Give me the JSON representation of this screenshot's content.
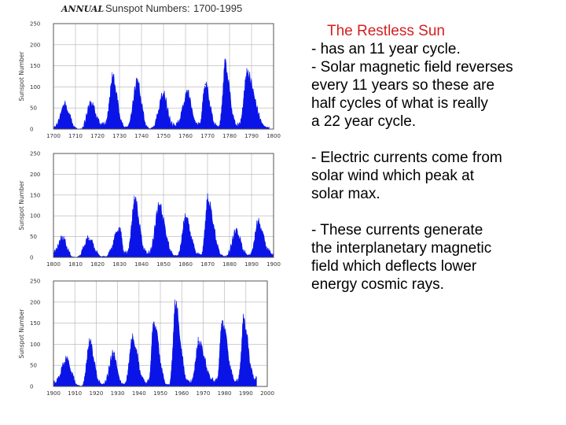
{
  "header": {
    "annual_tag": "ANNUAL",
    "title": "Sunspot Numbers:",
    "range": "1700-1995"
  },
  "text_panel": {
    "title": "The Restless Sun",
    "paragraphs": [
      [
        "- has an 11 year cycle.",
        "- Solar magnetic field reverses",
        "every 11 years so these are",
        "half cycles of what is really",
        "a 22 year cycle."
      ],
      [
        "- Electric currents come from",
        "solar wind which peak at",
        "solar max."
      ],
      [
        "- These currents generate",
        "the interplanetary magnetic",
        "field which deflects lower",
        "energy cosmic rays."
      ]
    ]
  },
  "colors": {
    "fill": "#0a14e6",
    "frame": "#555555",
    "grid": "#b0b0b0",
    "title_accent": "#d42020"
  },
  "chart_data": [
    {
      "type": "area",
      "xlabel": "",
      "ylabel": "Sunspot Number",
      "xlim": [
        1700,
        1800
      ],
      "ylim": [
        0,
        250
      ],
      "xticks": [
        "1700",
        "1710",
        "1720",
        "1730",
        "1740",
        "1750",
        "1760",
        "1770",
        "1780",
        "1790",
        "1800"
      ],
      "yticks": [
        "0",
        "50",
        "100",
        "150",
        "200",
        "250"
      ],
      "grid": true,
      "peaks": [
        [
          1705,
          58
        ],
        [
          1717,
          63
        ],
        [
          1727,
          122
        ],
        [
          1738,
          111
        ],
        [
          1750,
          83
        ],
        [
          1761,
          86
        ],
        [
          1769,
          106
        ],
        [
          1778,
          154
        ],
        [
          1788,
          132
        ]
      ],
      "minima": [
        [
          1700,
          5
        ],
        [
          1712,
          0
        ],
        [
          1723,
          11
        ],
        [
          1733,
          5
        ],
        [
          1744,
          2
        ],
        [
          1755,
          10
        ],
        [
          1766,
          12
        ],
        [
          1775,
          7
        ],
        [
          1784,
          10
        ],
        [
          1798,
          4
        ]
      ]
    },
    {
      "type": "area",
      "xlabel": "",
      "ylabel": "Sunspot Number",
      "xlim": [
        1800,
        1900
      ],
      "ylim": [
        0,
        250
      ],
      "xticks": [
        "1800",
        "1810",
        "1820",
        "1830",
        "1840",
        "1850",
        "1860",
        "1870",
        "1880",
        "1890",
        "1900"
      ],
      "yticks": [
        "0",
        "50",
        "100",
        "150",
        "200",
        "250"
      ],
      "grid": true,
      "peaks": [
        [
          1804,
          48
        ],
        [
          1816,
          46
        ],
        [
          1830,
          71
        ],
        [
          1837,
          138
        ],
        [
          1848,
          124
        ],
        [
          1860,
          96
        ],
        [
          1870,
          139
        ],
        [
          1883,
          64
        ],
        [
          1893,
          85
        ]
      ],
      "minima": [
        [
          1800,
          14
        ],
        [
          1810,
          0
        ],
        [
          1823,
          2
        ],
        [
          1833,
          9
        ],
        [
          1843,
          11
        ],
        [
          1856,
          4
        ],
        [
          1867,
          7
        ],
        [
          1878,
          3
        ],
        [
          1889,
          6
        ],
        [
          1900,
          10
        ]
      ]
    },
    {
      "type": "area",
      "xlabel": "",
      "ylabel": "Sunspot Number",
      "xlim": [
        1900,
        2000
      ],
      "ylim": [
        0,
        250
      ],
      "xticks": [
        "1900",
        "1910",
        "1920",
        "1930",
        "1940",
        "1950",
        "1960",
        "1970",
        "1980",
        "1990",
        "2000"
      ],
      "yticks": [
        "0",
        "50",
        "100",
        "150",
        "200",
        "250"
      ],
      "grid": true,
      "peaks": [
        [
          1906,
          64
        ],
        [
          1917,
          104
        ],
        [
          1928,
          78
        ],
        [
          1937,
          114
        ],
        [
          1947,
          152
        ],
        [
          1957,
          190
        ],
        [
          1968,
          106
        ],
        [
          1979,
          155
        ],
        [
          1989,
          158
        ]
      ],
      "minima": [
        [
          1900,
          10
        ],
        [
          1913,
          1
        ],
        [
          1923,
          6
        ],
        [
          1933,
          6
        ],
        [
          1944,
          10
        ],
        [
          1954,
          4
        ],
        [
          1964,
          10
        ],
        [
          1976,
          13
        ],
        [
          1986,
          13
        ],
        [
          1995,
          18
        ]
      ]
    }
  ]
}
